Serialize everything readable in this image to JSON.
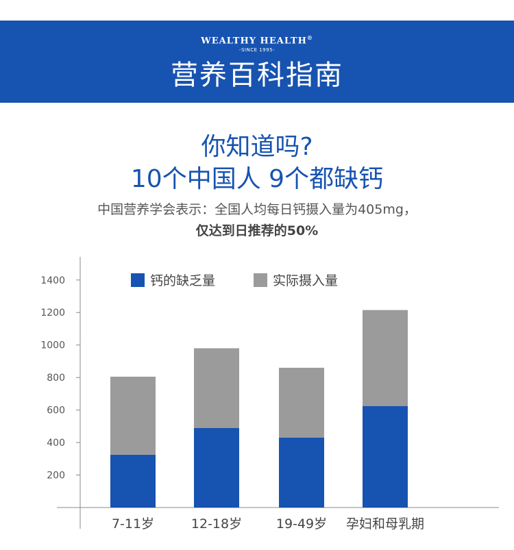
{
  "header": {
    "brand": "WEALTHY HEALTH",
    "brand_mark": "®",
    "since": "-SINCE 1995-",
    "title": "营养百科指南",
    "background_color": "#1753b0"
  },
  "headline": {
    "line1": "你知道吗?",
    "line2": "10个中国人 9个都缺钙",
    "color": "#1753b0"
  },
  "subtitle": {
    "line1": "中国营养学会表示：全国人均每日钙摄入量为405mg，",
    "line2": "仅达到日推荐的50%"
  },
  "chart_data": {
    "type": "bar",
    "stacked": true,
    "categories": [
      "7-11岁",
      "12-18岁",
      "19-49岁",
      "孕妇和母乳期"
    ],
    "series": [
      {
        "name": "钙的缺乏量",
        "color": "#1753b0",
        "values": [
          325,
          490,
          430,
          625
        ]
      },
      {
        "name": "实际摄入量",
        "color": "#9b9b9b",
        "values": [
          480,
          490,
          430,
          590
        ]
      }
    ],
    "yticks": [
      200,
      400,
      600,
      800,
      1000,
      1200,
      1400
    ],
    "ylim": [
      0,
      1600
    ],
    "legend_position": "top",
    "grid": false
  }
}
